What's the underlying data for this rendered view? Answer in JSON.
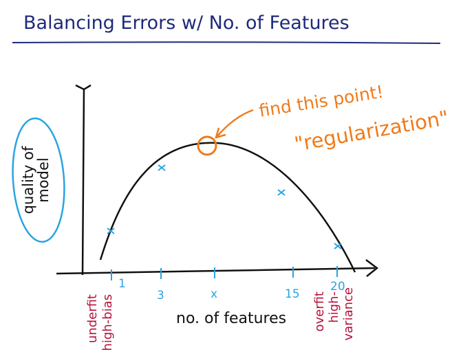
{
  "title": "Balancing Errors w/ No. of Features",
  "y_axis_label_line1": "quality of",
  "y_axis_label_line2": "model",
  "x_axis_label": "no. of features",
  "tick_labels": [
    "1",
    "3",
    "x",
    "15",
    "20"
  ],
  "annotation_find": "find this point!",
  "annotation_regularization": "\"regularization\"",
  "left_end_line1": "underfit",
  "left_end_line2": "high-bias",
  "right_end_line1": "overfit",
  "right_end_line2": "high-",
  "right_end_line3": "variance",
  "colors": {
    "title": "#1f2a7a",
    "axes": "#111111",
    "marks": "#2aa3e0",
    "highlight": "#f07a1a",
    "endpoint_labels": "#b5123a",
    "ylabel_circle": "#2aa3e0"
  }
}
